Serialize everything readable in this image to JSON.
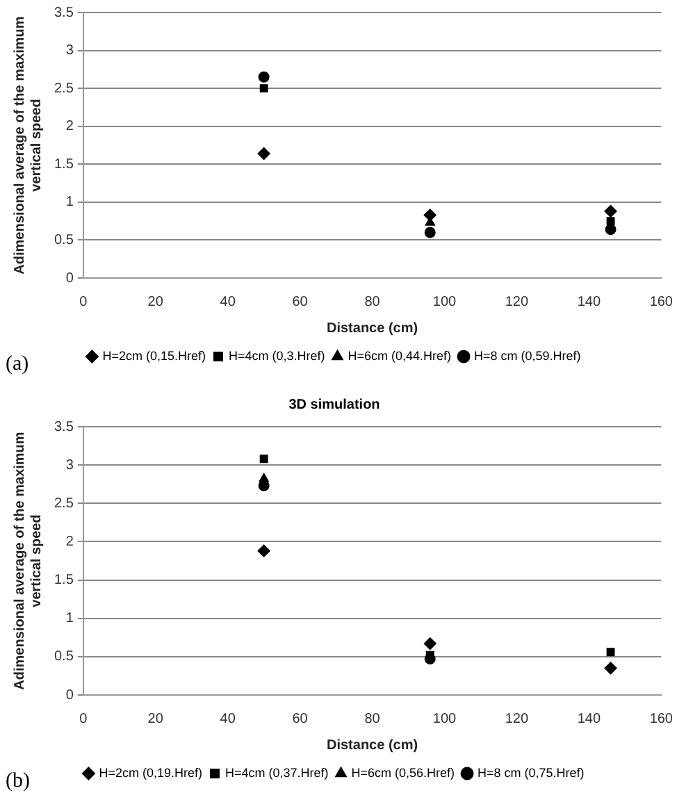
{
  "chart_data": [
    {
      "type": "scatter",
      "xlabel": "Distance (cm)",
      "ylabel": "Adimensional average of the maximum vertical speed",
      "annotations": [
        "(a)"
      ],
      "x": [
        50,
        96,
        146
      ],
      "xlim": [
        0,
        160
      ],
      "xticks": [
        0,
        20,
        40,
        60,
        80,
        100,
        120,
        140,
        160
      ],
      "ylim": [
        0,
        3.5
      ],
      "yticks": [
        0,
        0.5,
        1,
        1.5,
        2,
        2.5,
        3,
        3.5
      ],
      "grid": "y",
      "legend": "bottom",
      "series": [
        {
          "name": "H=2cm (0,15.Href)",
          "color": "#000000",
          "marker": "diamond",
          "values": [
            1.64,
            0.83,
            0.88
          ]
        },
        {
          "name": "H=4cm (0,3.Href)",
          "color": "#000000",
          "marker": "square",
          "values": [
            2.5,
            null,
            0.75
          ]
        },
        {
          "name": "H=6cm (0,44.Href)",
          "color": "#000000",
          "marker": "triangle",
          "values": [
            null,
            0.73,
            null
          ]
        },
        {
          "name": "H=8 cm (0,59.Href)",
          "color": "#000000",
          "marker": "circle",
          "values": [
            2.65,
            0.6,
            0.64
          ]
        }
      ]
    },
    {
      "type": "scatter",
      "title": "3D simulation",
      "xlabel": "Distance (cm)",
      "ylabel": "Adimensional average of the maximum vertical speed",
      "annotations": [
        "(b)"
      ],
      "x": [
        50,
        96,
        146
      ],
      "xlim": [
        0,
        160
      ],
      "xticks": [
        0,
        20,
        40,
        60,
        80,
        100,
        120,
        140,
        160
      ],
      "ylim": [
        0,
        3.5
      ],
      "yticks": [
        0,
        0.5,
        1,
        1.5,
        2,
        2.5,
        3,
        3.5
      ],
      "grid": "y",
      "legend": "bottom",
      "series": [
        {
          "name": "H=2cm (0,19.Href)",
          "color": "#000000",
          "marker": "diamond",
          "values": [
            1.88,
            0.67,
            0.35
          ]
        },
        {
          "name": "H=4cm (0,37.Href)",
          "color": "#000000",
          "marker": "square",
          "values": [
            3.08,
            0.52,
            0.56
          ]
        },
        {
          "name": "H=6cm (0,56.Href)",
          "color": "#000000",
          "marker": "triangle",
          "values": [
            2.82,
            null,
            null
          ]
        },
        {
          "name": "H=8 cm (0,75.Href)",
          "color": "#000000",
          "marker": "circle",
          "values": [
            2.73,
            0.47,
            null
          ]
        }
      ]
    }
  ]
}
